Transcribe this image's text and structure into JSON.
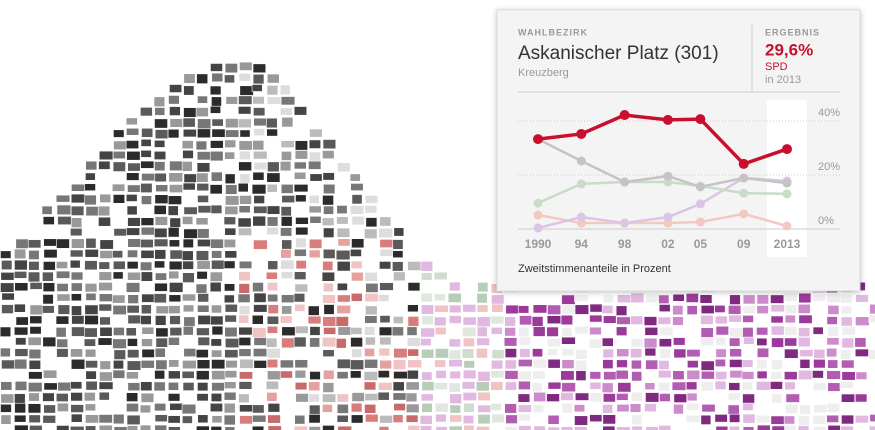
{
  "tooltip": {
    "label": "WAHLBEZIRK",
    "title": "Askanischer Platz (301)",
    "district": "Kreuzberg",
    "result_label": "ERGEBNIS",
    "result_value": "29,6%",
    "result_party": "SPD",
    "result_year": "in 2013"
  },
  "chart_data": {
    "type": "line",
    "caption": "Zweitstimmenanteile in Prozent",
    "x": [
      1990,
      1994,
      1998,
      2002,
      2005,
      2009,
      2013
    ],
    "xlim": [
      1990,
      2013
    ],
    "xticks": [
      1990,
      {
        "value": 1994,
        "label": "94"
      },
      {
        "value": 1998,
        "label": "98"
      },
      {
        "value": 2002,
        "label": "02"
      },
      {
        "value": 2005,
        "label": "05"
      },
      {
        "value": 2009,
        "label": "09"
      },
      2013
    ],
    "ylim": [
      0,
      45
    ],
    "yticks": [
      {
        "value": 0,
        "label": "0%"
      },
      {
        "value": 20,
        "label": "20%"
      },
      {
        "value": 40,
        "label": "40%"
      }
    ],
    "grid": true,
    "series": [
      {
        "color": "#f2c9c0",
        "values": [
          5.2,
          2.2,
          2.2,
          2.2,
          2.6,
          5.6,
          1.1
        ]
      },
      {
        "color": "#dcc4e4",
        "values": [
          0.4,
          4.4,
          2.2,
          4.4,
          9.3,
          18.9,
          17.8
        ]
      },
      {
        "color": "#c8dcc8",
        "values": [
          9.6,
          16.7,
          17.4,
          17.4,
          15.9,
          13.3,
          13.0
        ]
      },
      {
        "color": "#c4c4c4",
        "values": [
          33.3,
          25.2,
          17.4,
          19.6,
          15.6,
          18.9,
          17.0
        ]
      },
      {
        "color": "#c8102e",
        "values": [
          33.3,
          35.2,
          42.2,
          40.4,
          40.7,
          24.1,
          29.6
        ]
      }
    ]
  }
}
